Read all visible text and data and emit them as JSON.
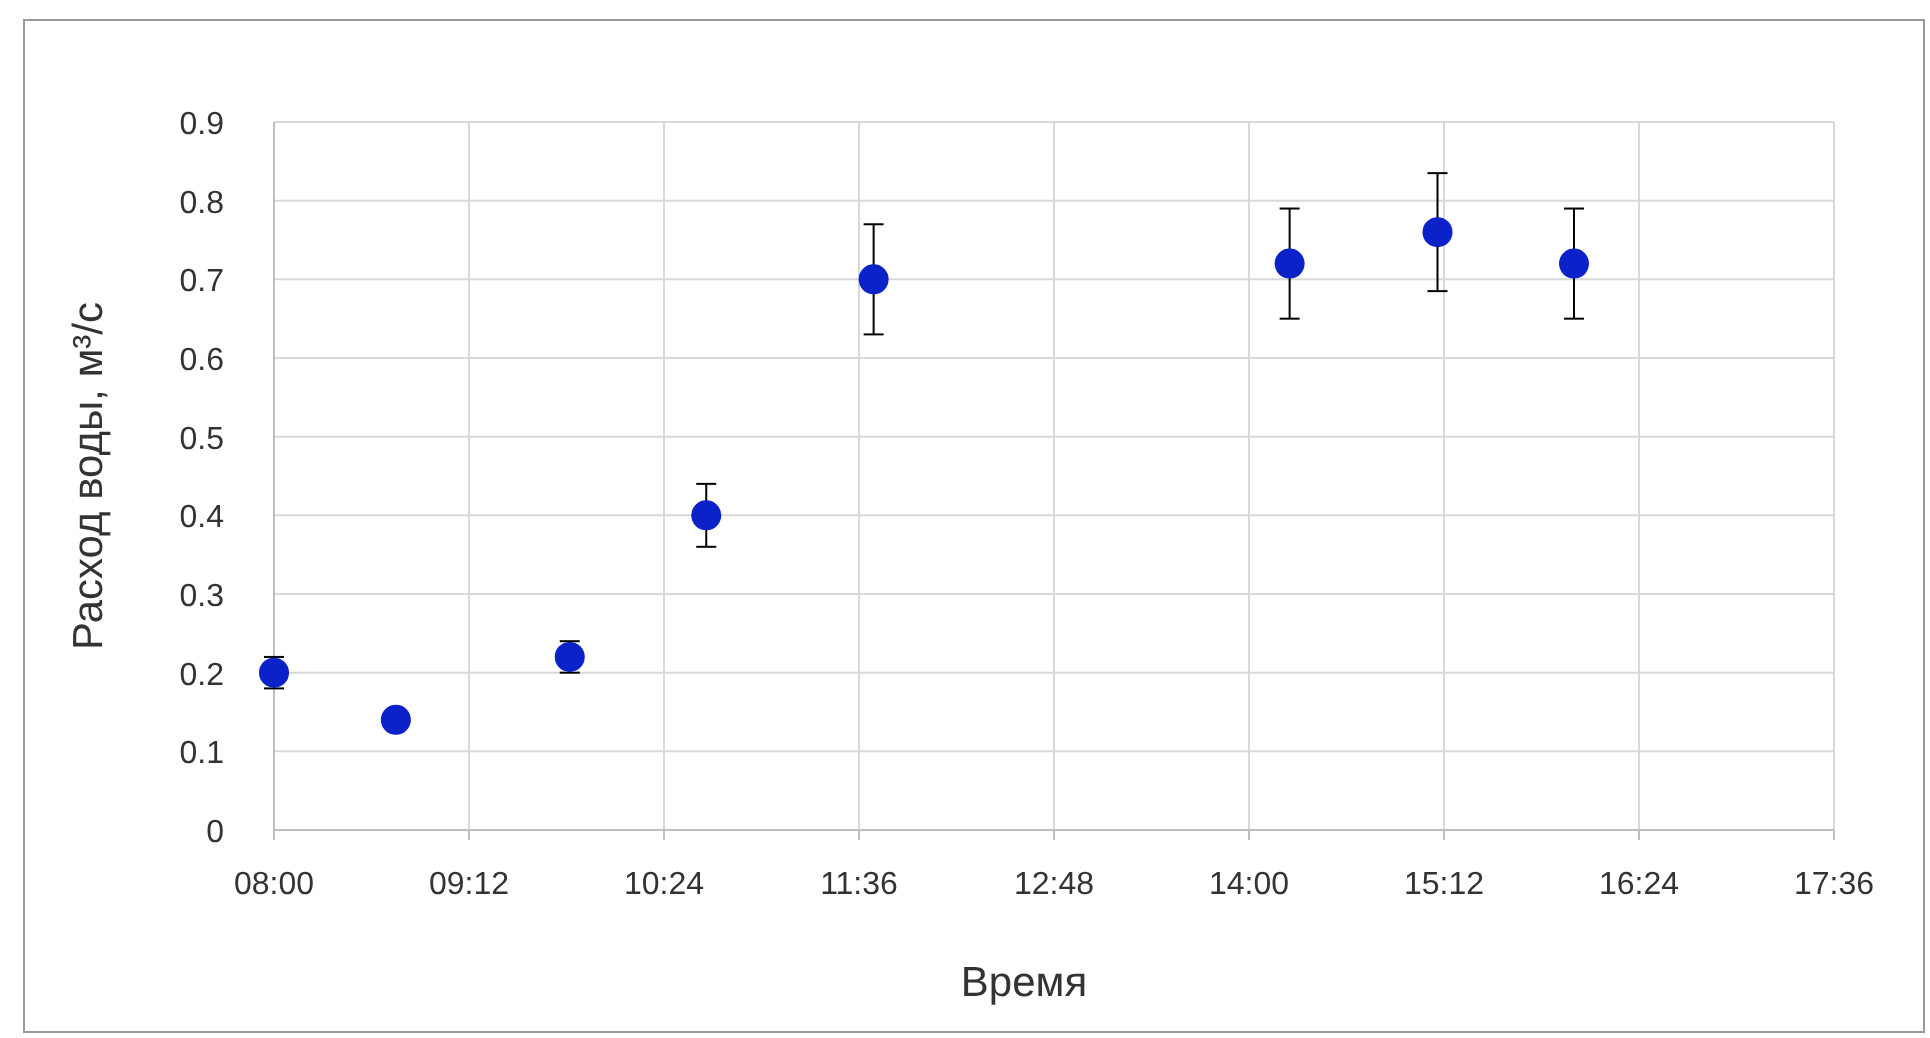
{
  "chart_data": {
    "type": "scatter",
    "xlabel": "Время",
    "ylabel": "Расход воды, м³/с",
    "x": [
      8.0,
      8.75,
      9.82,
      10.66,
      11.69,
      14.25,
      15.16,
      16.0
    ],
    "series": [
      {
        "color": "#0a22c8",
        "values": [
          0.2,
          0.14,
          0.22,
          0.4,
          0.7,
          0.72,
          0.76,
          0.72
        ],
        "errors": [
          0.02,
          null,
          0.02,
          0.04,
          0.07,
          0.07,
          0.075,
          0.07
        ]
      }
    ],
    "xlim": [
      8,
      17.6
    ],
    "xticks": [
      {
        "value": 8,
        "label": "08:00"
      },
      {
        "value": 9.2,
        "label": "09:12"
      },
      {
        "value": 10.4,
        "label": "10:24"
      },
      {
        "value": 11.6,
        "label": "11:36"
      },
      {
        "value": 12.8,
        "label": "12:48"
      },
      {
        "value": 14,
        "label": "14:00"
      },
      {
        "value": 15.2,
        "label": "15:12"
      },
      {
        "value": 16.4,
        "label": "16:24"
      },
      {
        "value": 17.6,
        "label": "17:36"
      }
    ],
    "ylim": [
      0,
      0.9
    ],
    "yticks": [
      0,
      0.1,
      0.2,
      0.3,
      0.4,
      0.5,
      0.6,
      0.7,
      0.8,
      0.9
    ],
    "grid": true,
    "marker": "circle"
  }
}
